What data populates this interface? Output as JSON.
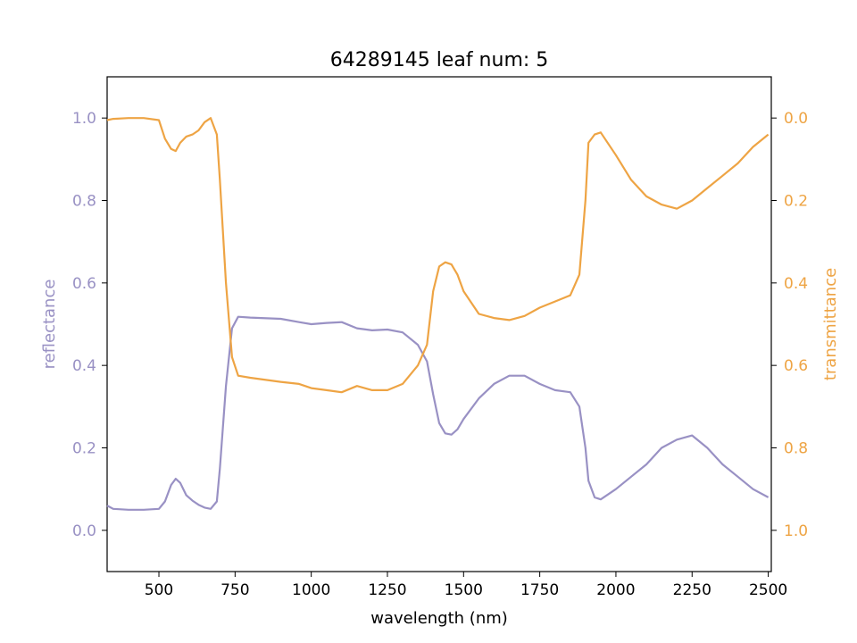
{
  "chart_data": {
    "type": "line",
    "title": "64289145 leaf num: 5",
    "xlabel": "wavelength (nm)",
    "ylabel_left": "reflectance",
    "ylabel_right": "transmittance",
    "xlim": [
      330,
      2510
    ],
    "ylim_left": [
      -0.1,
      1.1
    ],
    "ylim_right": [
      1.1,
      -0.1
    ],
    "y_right_inverted": true,
    "grid": false,
    "x_ticks": [
      "500",
      "750",
      "1000",
      "1250",
      "1500",
      "1750",
      "2000",
      "2250",
      "2500"
    ],
    "y_left_ticks": [
      "0.0",
      "0.2",
      "0.4",
      "0.6",
      "0.8",
      "1.0"
    ],
    "y_right_ticks": [
      "0.0",
      "0.2",
      "0.4",
      "0.6",
      "0.8",
      "1.0"
    ],
    "colors": {
      "reflectance": "#9991c4",
      "transmittance": "#eea444",
      "axes": "#000000"
    },
    "series": [
      {
        "name": "reflectance",
        "axis": "left",
        "x": [
          330,
          350,
          400,
          450,
          500,
          520,
          540,
          555,
          570,
          590,
          610,
          630,
          650,
          670,
          690,
          700,
          720,
          740,
          760,
          800,
          900,
          960,
          1000,
          1050,
          1100,
          1150,
          1200,
          1250,
          1300,
          1350,
          1380,
          1400,
          1420,
          1440,
          1460,
          1480,
          1500,
          1550,
          1600,
          1650,
          1700,
          1750,
          1800,
          1850,
          1880,
          1900,
          1910,
          1930,
          1950,
          2000,
          2050,
          2100,
          2150,
          2200,
          2250,
          2300,
          2350,
          2400,
          2450,
          2500
        ],
        "y": [
          0.06,
          0.052,
          0.05,
          0.05,
          0.052,
          0.07,
          0.11,
          0.125,
          0.115,
          0.085,
          0.072,
          0.062,
          0.055,
          0.052,
          0.07,
          0.15,
          0.35,
          0.49,
          0.518,
          0.516,
          0.513,
          0.505,
          0.5,
          0.503,
          0.505,
          0.49,
          0.485,
          0.487,
          0.48,
          0.45,
          0.41,
          0.33,
          0.26,
          0.235,
          0.232,
          0.245,
          0.27,
          0.32,
          0.355,
          0.375,
          0.375,
          0.355,
          0.34,
          0.335,
          0.3,
          0.2,
          0.12,
          0.08,
          0.075,
          0.1,
          0.13,
          0.16,
          0.2,
          0.22,
          0.23,
          0.2,
          0.16,
          0.13,
          0.1,
          0.08
        ]
      },
      {
        "name": "transmittance",
        "axis": "right",
        "x": [
          330,
          350,
          400,
          450,
          500,
          520,
          540,
          555,
          570,
          590,
          610,
          630,
          650,
          670,
          690,
          700,
          720,
          740,
          760,
          800,
          900,
          960,
          1000,
          1050,
          1100,
          1150,
          1200,
          1250,
          1300,
          1350,
          1380,
          1400,
          1420,
          1440,
          1460,
          1480,
          1500,
          1550,
          1600,
          1650,
          1700,
          1750,
          1800,
          1850,
          1880,
          1900,
          1910,
          1930,
          1950,
          2000,
          2050,
          2100,
          2150,
          2200,
          2250,
          2300,
          2350,
          2400,
          2450,
          2500
        ],
        "y": [
          0.005,
          0.002,
          0.0,
          0.0,
          0.005,
          0.05,
          0.075,
          0.08,
          0.06,
          0.045,
          0.04,
          0.03,
          0.01,
          0.0,
          0.04,
          0.15,
          0.4,
          0.58,
          0.625,
          0.63,
          0.64,
          0.645,
          0.655,
          0.66,
          0.665,
          0.65,
          0.66,
          0.66,
          0.645,
          0.6,
          0.55,
          0.42,
          0.36,
          0.35,
          0.355,
          0.38,
          0.42,
          0.475,
          0.485,
          0.49,
          0.48,
          0.46,
          0.445,
          0.43,
          0.38,
          0.2,
          0.06,
          0.04,
          0.035,
          0.09,
          0.15,
          0.19,
          0.21,
          0.22,
          0.2,
          0.17,
          0.14,
          0.11,
          0.07,
          0.04
        ]
      }
    ]
  }
}
